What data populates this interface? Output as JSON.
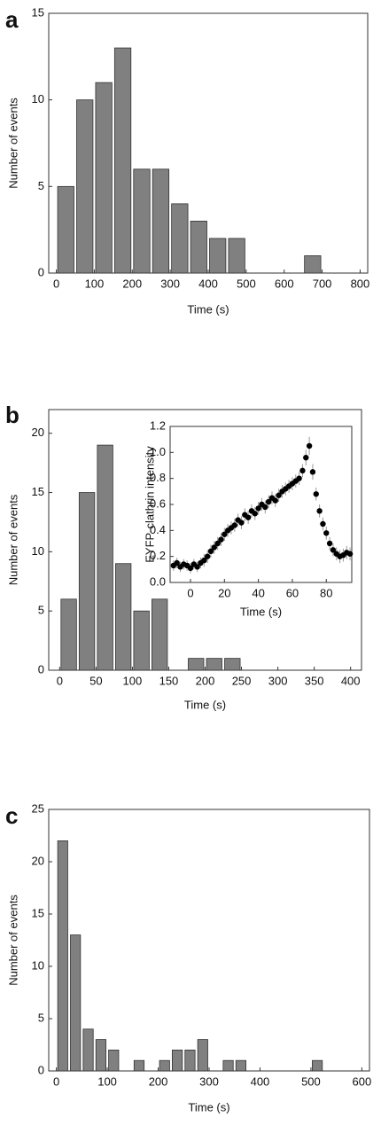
{
  "chart_data": [
    {
      "type": "histogram",
      "panel": "a",
      "xlabel": "Time (s)",
      "ylabel": "Number of events",
      "bins": [
        0,
        50,
        100,
        150,
        200,
        250,
        300,
        350,
        400,
        450,
        500,
        550,
        600,
        650,
        700
      ],
      "values": [
        5,
        10,
        11,
        13,
        6,
        6,
        4,
        3,
        2,
        2,
        0,
        0,
        0,
        1
      ],
      "color": "#808080",
      "xlim": [
        -20,
        820
      ],
      "xticks": [
        0,
        100,
        200,
        300,
        400,
        500,
        600,
        700,
        800
      ],
      "ylim": [
        0,
        15
      ],
      "yticks": [
        0,
        5,
        10,
        15
      ]
    },
    {
      "type": "histogram",
      "panel": "b",
      "xlabel": "Time (s)",
      "ylabel": "Number of events",
      "bins": [
        0,
        25,
        50,
        75,
        100,
        125,
        150,
        175,
        200,
        225,
        250
      ],
      "values": [
        6,
        15,
        19,
        9,
        5,
        6,
        0,
        1,
        1,
        1
      ],
      "color": "#808080",
      "xlim": [
        -15,
        415
      ],
      "xticks": [
        0,
        50,
        100,
        150,
        200,
        250,
        300,
        350,
        400
      ],
      "ylim": [
        0,
        22
      ],
      "yticks": [
        0,
        5,
        10,
        15,
        20
      ]
    },
    {
      "type": "scatter",
      "xlabel": "Time (s)",
      "ylabel": "EYFP-clathrin intensity",
      "x": [
        -10,
        -8,
        -6,
        -4,
        -2,
        0,
        2,
        4,
        6,
        8,
        10,
        12,
        14,
        16,
        18,
        20,
        22,
        24,
        26,
        28,
        30,
        32,
        34,
        36,
        38,
        40,
        42,
        44,
        46,
        48,
        50,
        52,
        54,
        56,
        58,
        60,
        62,
        64,
        66,
        68,
        70,
        72,
        74,
        76,
        78,
        80,
        82,
        84,
        86,
        88,
        90,
        92,
        94
      ],
      "series": [
        {
          "color": "#000000",
          "values": [
            0.13,
            0.15,
            0.12,
            0.14,
            0.13,
            0.11,
            0.14,
            0.12,
            0.15,
            0.17,
            0.2,
            0.24,
            0.27,
            0.3,
            0.33,
            0.37,
            0.4,
            0.42,
            0.44,
            0.48,
            0.46,
            0.52,
            0.5,
            0.55,
            0.53,
            0.57,
            0.6,
            0.58,
            0.62,
            0.65,
            0.63,
            0.67,
            0.7,
            0.72,
            0.74,
            0.76,
            0.78,
            0.8,
            0.86,
            0.96,
            1.05,
            0.85,
            0.68,
            0.55,
            0.45,
            0.38,
            0.3,
            0.25,
            0.22,
            0.2,
            0.21,
            0.23,
            0.22
          ],
          "errors": [
            0.04,
            0.04,
            0.04,
            0.04,
            0.04,
            0.04,
            0.04,
            0.04,
            0.04,
            0.05,
            0.05,
            0.05,
            0.05,
            0.05,
            0.05,
            0.05,
            0.05,
            0.05,
            0.05,
            0.05,
            0.05,
            0.05,
            0.05,
            0.05,
            0.05,
            0.05,
            0.05,
            0.05,
            0.05,
            0.05,
            0.05,
            0.05,
            0.05,
            0.05,
            0.05,
            0.05,
            0.05,
            0.05,
            0.05,
            0.06,
            0.07,
            0.06,
            0.05,
            0.05,
            0.05,
            0.05,
            0.05,
            0.05,
            0.05,
            0.05,
            0.05,
            0.05,
            0.05
          ]
        }
      ],
      "xlim": [
        -12,
        95
      ],
      "xticks": [
        0,
        20,
        40,
        60,
        80
      ],
      "ylim": [
        0,
        1.2
      ],
      "yticks": [
        {
          "value": 0,
          "label": "0.0"
        },
        0.2,
        0.4,
        0.6,
        0.8,
        {
          "value": 1,
          "label": "1.0"
        },
        1.2
      ]
    },
    {
      "type": "histogram",
      "panel": "c",
      "xlabel": "Time (s)",
      "ylabel": "Number of events",
      "bins": [
        0,
        25,
        50,
        75,
        100,
        125,
        150,
        175,
        200,
        225,
        250,
        275,
        300,
        325,
        350,
        375,
        400,
        425,
        450,
        475,
        500,
        525
      ],
      "values": [
        22,
        13,
        4,
        3,
        2,
        0,
        1,
        0,
        1,
        2,
        2,
        3,
        0,
        1,
        1,
        0,
        0,
        0,
        0,
        0,
        1
      ],
      "color": "#808080",
      "xlim": [
        -15,
        615
      ],
      "xticks": [
        0,
        100,
        200,
        300,
        400,
        500,
        600
      ],
      "ylim": [
        0,
        25
      ],
      "yticks": [
        0,
        5,
        10,
        15,
        20,
        25
      ]
    }
  ]
}
